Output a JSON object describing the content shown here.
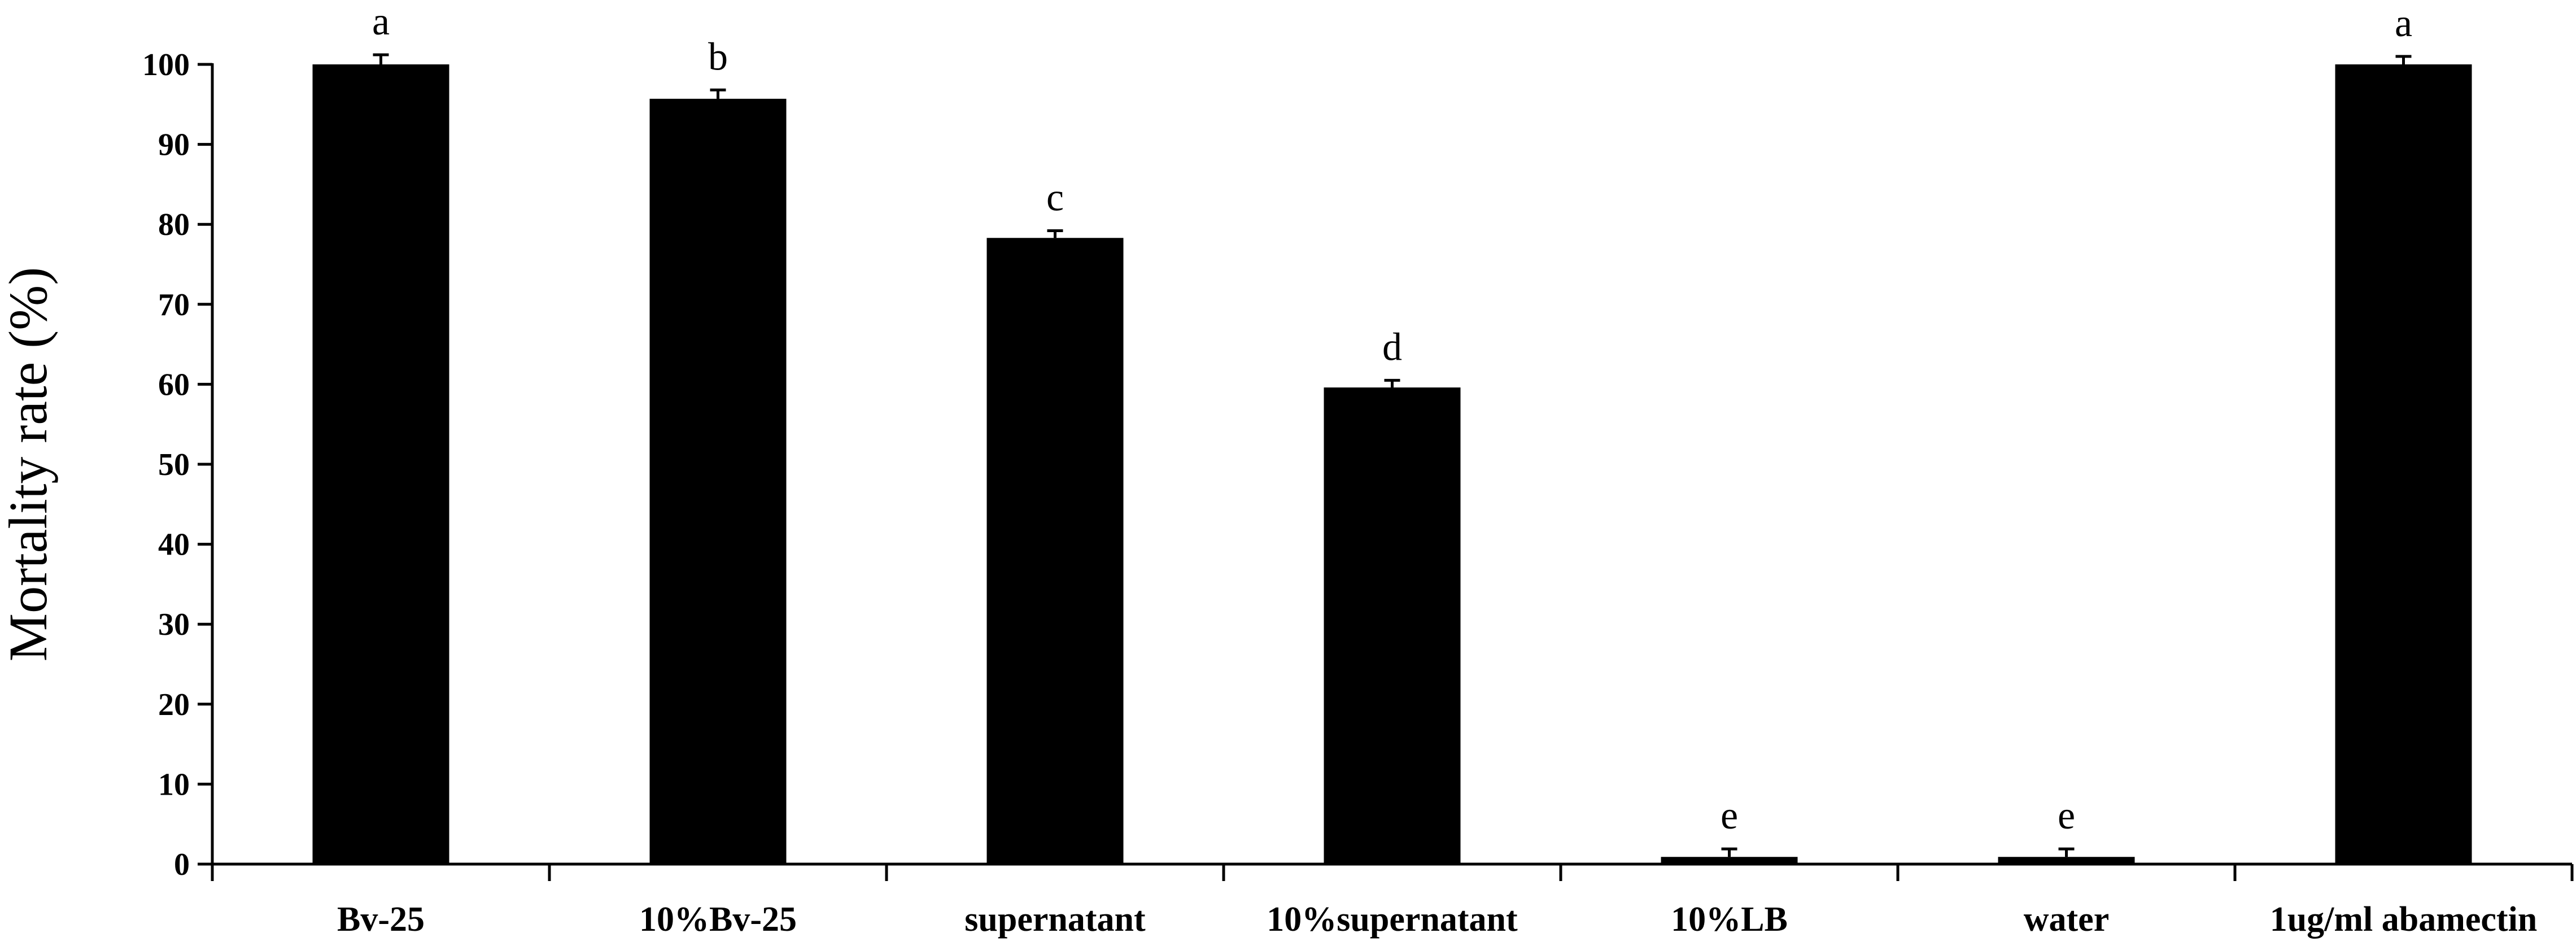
{
  "chart_data": {
    "type": "bar",
    "title": "",
    "xlabel": "",
    "ylabel": "Mortality rate (%)",
    "ylim": [
      0,
      100
    ],
    "yticks": [
      0,
      10,
      20,
      30,
      40,
      50,
      60,
      70,
      80,
      90,
      100
    ],
    "grid": false,
    "legend": "none",
    "categories": [
      "Bv-25",
      "10%Bv-25",
      "supernatant",
      "10%supernatant",
      "10%LB",
      "water",
      "1ug/ml abamectin"
    ],
    "series": [
      {
        "values": [
          100,
          95.7,
          78.3,
          59.6,
          0.9,
          0.9,
          100
        ],
        "errors": [
          1.2,
          1.1,
          0.9,
          0.9,
          1.0,
          1.0,
          1.0
        ],
        "significance": [
          "a",
          "b",
          "c",
          "d",
          "e",
          "e",
          "a"
        ],
        "color": "#000000"
      }
    ]
  }
}
